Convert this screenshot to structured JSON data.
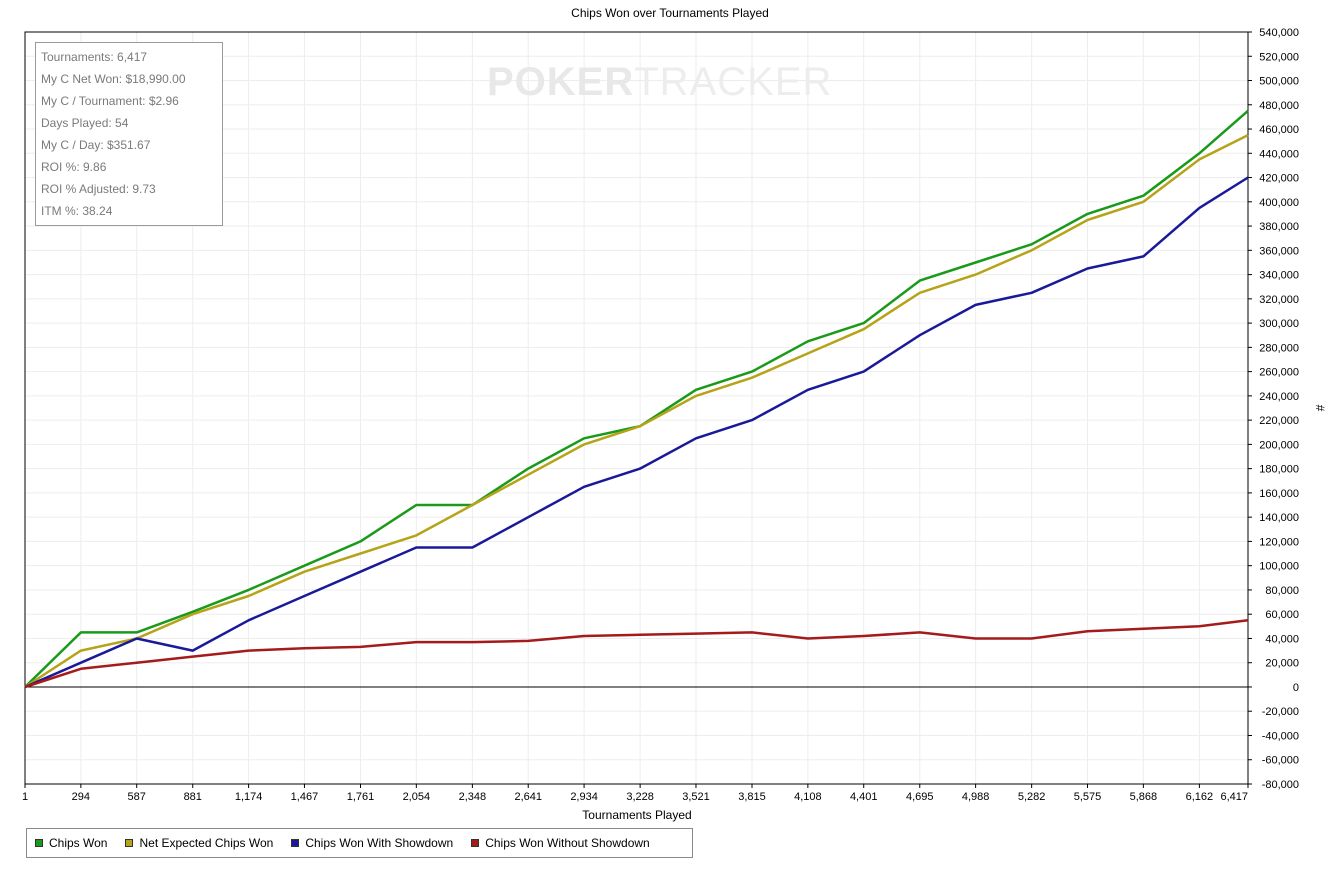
{
  "chart_data": {
    "type": "line",
    "title": "Chips Won over Tournaments Played",
    "xlabel": "Tournaments Played",
    "ylabel": "#",
    "xlim": [
      1,
      6417
    ],
    "ylim": [
      -80000,
      540000
    ],
    "x_ticks": [
      "1",
      "294",
      "587",
      "881",
      "1,174",
      "1,467",
      "1,761",
      "2,054",
      "2,348",
      "2,641",
      "2,934",
      "3,228",
      "3,521",
      "3,815",
      "4,108",
      "4,401",
      "4,695",
      "4,988",
      "5,282",
      "5,575",
      "5,868",
      "6,162",
      "6,417"
    ],
    "y_ticks": [
      "540,000",
      "520,000",
      "500,000",
      "480,000",
      "460,000",
      "440,000",
      "420,000",
      "400,000",
      "380,000",
      "360,000",
      "340,000",
      "320,000",
      "300,000",
      "280,000",
      "260,000",
      "240,000",
      "220,000",
      "200,000",
      "180,000",
      "160,000",
      "140,000",
      "120,000",
      "100,000",
      "80,000",
      "60,000",
      "40,000",
      "20,000",
      "0",
      "-20,000",
      "-40,000",
      "-60,000",
      "-80,000"
    ],
    "y_tick_values": [
      540000,
      520000,
      500000,
      480000,
      460000,
      440000,
      420000,
      400000,
      380000,
      360000,
      340000,
      320000,
      300000,
      280000,
      260000,
      240000,
      220000,
      200000,
      180000,
      160000,
      140000,
      120000,
      100000,
      80000,
      60000,
      40000,
      20000,
      0,
      -20000,
      -40000,
      -60000,
      -80000
    ],
    "grid": true,
    "legend_position": "bottom-left",
    "x": [
      1,
      294,
      587,
      881,
      1174,
      1467,
      1761,
      2054,
      2348,
      2641,
      2934,
      3228,
      3521,
      3815,
      4108,
      4401,
      4695,
      4988,
      5282,
      5575,
      5868,
      6162,
      6417
    ],
    "series": [
      {
        "name": "Chips Won",
        "color": "#1a9a1a",
        "values": [
          0,
          45000,
          45000,
          62000,
          80000,
          100000,
          120000,
          150000,
          150000,
          180000,
          205000,
          215000,
          245000,
          260000,
          285000,
          300000,
          335000,
          350000,
          365000,
          390000,
          405000,
          440000,
          475000
        ]
      },
      {
        "name": "Net Expected Chips Won",
        "color": "#b5a41a",
        "values": [
          0,
          30000,
          40000,
          60000,
          75000,
          95000,
          110000,
          125000,
          150000,
          175000,
          200000,
          215000,
          240000,
          255000,
          275000,
          295000,
          325000,
          340000,
          360000,
          385000,
          400000,
          435000,
          455000
        ]
      },
      {
        "name": "Chips Won With Showdown",
        "color": "#1a1a99",
        "values": [
          0,
          20000,
          40000,
          30000,
          55000,
          75000,
          95000,
          115000,
          115000,
          140000,
          165000,
          180000,
          205000,
          220000,
          245000,
          260000,
          290000,
          315000,
          325000,
          345000,
          355000,
          395000,
          420000
        ]
      },
      {
        "name": "Chips Won Without Showdown",
        "color": "#a51a1a",
        "values": [
          0,
          15000,
          20000,
          25000,
          30000,
          32000,
          33000,
          37000,
          37000,
          38000,
          42000,
          43000,
          44000,
          45000,
          40000,
          42000,
          45000,
          40000,
          40000,
          46000,
          48000,
          50000,
          55000
        ]
      }
    ]
  },
  "stats": [
    "Tournaments: 6,417",
    "My C Net Won: $18,990.00",
    "My C / Tournament: $2.96",
    "Days Played: 54",
    "My C / Day: $351.67",
    "ROI %: 9.86",
    "ROI % Adjusted: 9.73",
    "ITM %: 38.24"
  ],
  "watermark": {
    "bold": "POKER",
    "light": "TRACKER"
  }
}
